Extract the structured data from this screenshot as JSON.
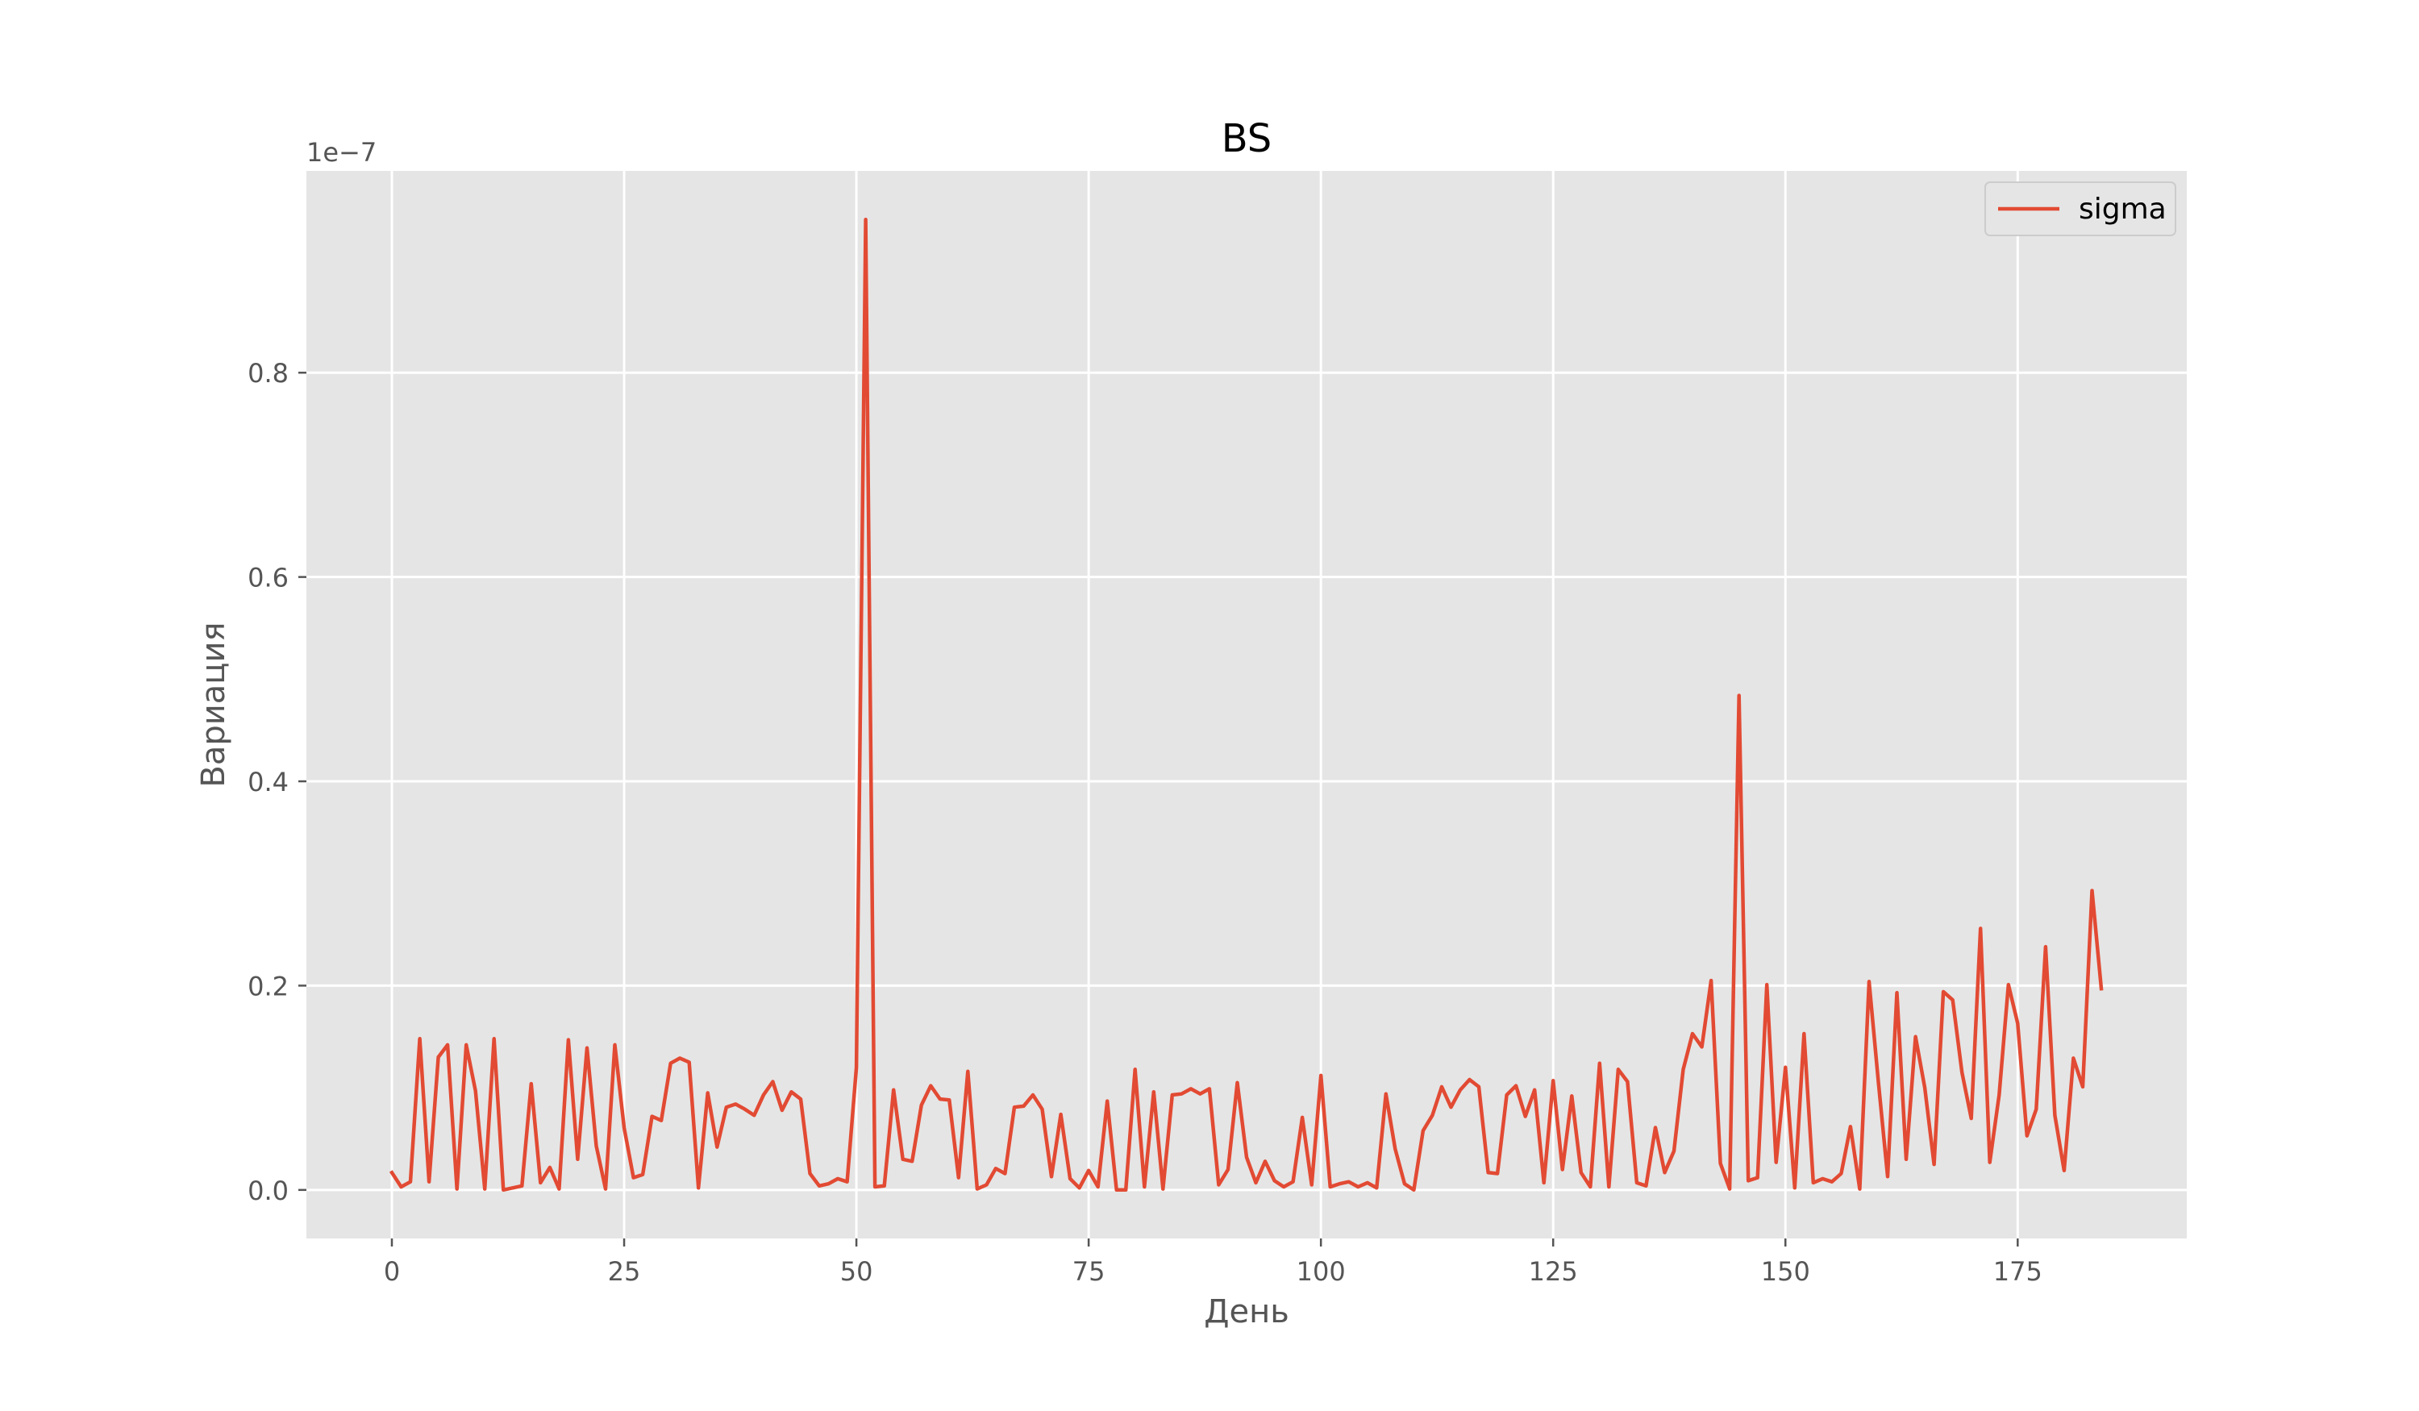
{
  "chart_data": {
    "type": "line",
    "title": "BS",
    "xlabel": "День",
    "ylabel": "Вариация",
    "offset_text": "1e−7",
    "y_multiplier": 1e-07,
    "xlim": [
      -9.2,
      193.2
    ],
    "ylim": [
      -0.475,
      9.975
    ],
    "x_ticks": [
      0,
      25,
      50,
      75,
      100,
      125,
      150,
      175
    ],
    "x_tick_labels": [
      "0",
      "25",
      "50",
      "75",
      "100",
      "125",
      "150",
      "175"
    ],
    "y_ticks": [
      0,
      2,
      4,
      6,
      8
    ],
    "y_tick_labels": [
      "0.0",
      "0.2",
      "0.4",
      "0.6",
      "0.8"
    ],
    "grid": true,
    "background": "#e5e5e5",
    "grid_color": "#ffffff",
    "legend_position": "upper right",
    "series": [
      {
        "name": "sigma",
        "color": "#e24a33",
        "x_start": 0,
        "x_step": 1,
        "values": [
          0.17,
          0.03,
          0.08,
          1.48,
          0.08,
          1.3,
          1.42,
          0.01,
          1.42,
          0.97,
          0.01,
          1.48,
          0.0,
          0.02,
          0.04,
          1.04,
          0.07,
          0.22,
          0.01,
          1.47,
          0.3,
          1.39,
          0.43,
          0.01,
          1.42,
          0.61,
          0.12,
          0.15,
          0.72,
          0.68,
          1.24,
          1.29,
          1.25,
          0.02,
          0.95,
          0.42,
          0.81,
          0.84,
          0.79,
          0.73,
          0.93,
          1.06,
          0.78,
          0.96,
          0.89,
          0.16,
          0.04,
          0.06,
          0.11,
          0.08,
          1.2,
          9.5,
          0.03,
          0.04,
          0.98,
          0.3,
          0.28,
          0.83,
          1.02,
          0.89,
          0.88,
          0.12,
          1.16,
          0.01,
          0.05,
          0.21,
          0.16,
          0.81,
          0.82,
          0.93,
          0.79,
          0.13,
          0.74,
          0.11,
          0.02,
          0.19,
          0.03,
          0.87,
          0.0,
          0.0,
          1.18,
          0.03,
          0.96,
          0.01,
          0.93,
          0.94,
          0.99,
          0.94,
          0.99,
          0.05,
          0.2,
          1.05,
          0.32,
          0.07,
          0.28,
          0.09,
          0.03,
          0.08,
          0.71,
          0.05,
          1.12,
          0.03,
          0.06,
          0.08,
          0.03,
          0.07,
          0.02,
          0.94,
          0.4,
          0.06,
          0.0,
          0.58,
          0.73,
          1.01,
          0.81,
          0.98,
          1.08,
          1.01,
          0.17,
          0.16,
          0.93,
          1.02,
          0.72,
          0.98,
          0.07,
          1.07,
          0.2,
          0.92,
          0.17,
          0.03,
          1.24,
          0.03,
          1.18,
          1.06,
          0.07,
          0.04,
          0.61,
          0.17,
          0.38,
          1.18,
          1.53,
          1.4,
          2.05,
          0.26,
          0.01,
          4.84,
          0.09,
          0.12,
          2.01,
          0.27,
          1.2,
          0.02,
          1.53,
          0.07,
          0.11,
          0.08,
          0.16,
          0.62,
          0.01,
          2.04,
          1.06,
          0.13,
          1.93,
          0.3,
          1.5,
          1.0,
          0.25,
          1.94,
          1.86,
          1.15,
          0.7,
          2.56,
          0.27,
          0.93,
          2.01,
          1.63,
          0.53,
          0.79,
          2.38,
          0.73,
          0.19,
          1.29,
          1.01,
          2.93,
          1.97
        ]
      }
    ]
  }
}
